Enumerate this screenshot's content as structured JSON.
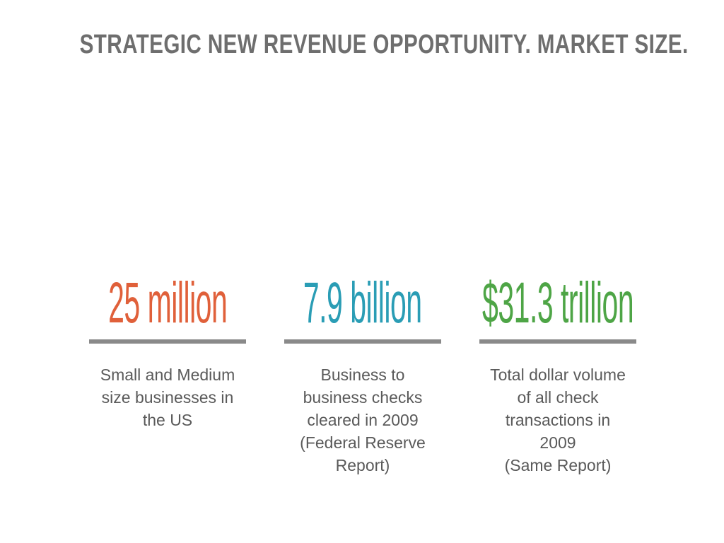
{
  "slide": {
    "title": "STRATEGIC NEW REVENUE OPPORTUNITY.  MARKET SIZE.",
    "stats": [
      {
        "figure": "25 million",
        "color": "#e0603a",
        "caption_lines": [
          "Small and Medium",
          "size businesses in",
          "the US"
        ]
      },
      {
        "figure": "7.9 billion",
        "color": "#2a9db5",
        "caption_lines": [
          "Business to",
          "business checks",
          "cleared in 2009",
          "(Federal Reserve",
          "Report)"
        ]
      },
      {
        "figure": "$31.3 trillion",
        "color": "#4ea546",
        "caption_lines": [
          "Total dollar volume",
          "of all check",
          "transactions in",
          "2009",
          "(Same Report)"
        ]
      }
    ],
    "rule_color": "#8a8a8a"
  }
}
